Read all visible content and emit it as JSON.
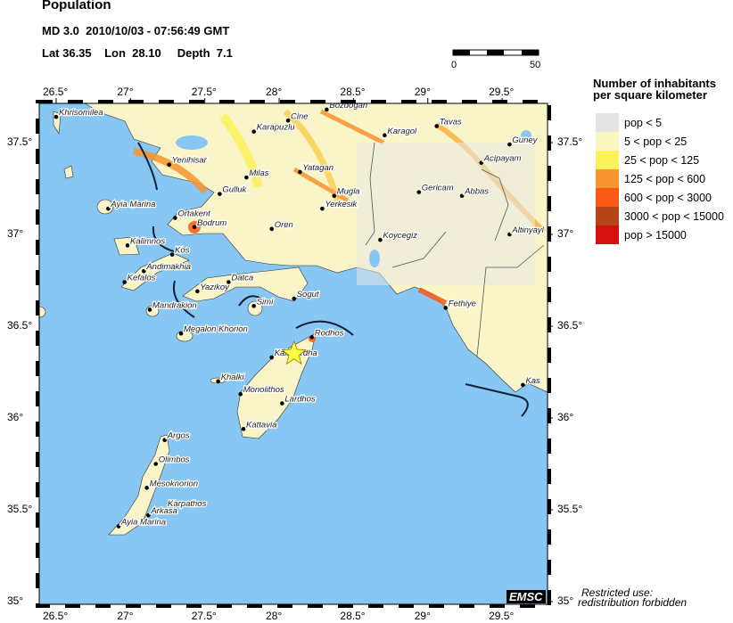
{
  "title": "Population",
  "event": {
    "line1": "MD 3.0  2010/10/03 - 07:56:49 GMT",
    "line2": "Lat 36.35    Lon  28.10     Depth  7.1"
  },
  "epicenter": {
    "lat": 36.35,
    "lon": 28.1,
    "icon": "star-icon",
    "color": "#ffff40"
  },
  "map": {
    "lon_range": [
      26.44,
      29.8
    ],
    "lat_range": [
      34.99,
      37.72
    ],
    "sea_color": "#88c6f4",
    "land_color": "#faf5c8"
  },
  "axes": {
    "lon_ticks": [
      "26.5°",
      "27°",
      "27.5°",
      "28°",
      "28.5°",
      "29°",
      "29.5°"
    ],
    "lat_ticks": [
      "37.5°",
      "37°",
      "36.5°",
      "36°",
      "35.5°",
      "35°"
    ]
  },
  "scalebar": {
    "start": "0",
    "end": "50"
  },
  "legend": {
    "title_line1": "Number of inhabitants",
    "title_line2": "per square kilometer",
    "items": [
      {
        "label": "pop < 5",
        "color": "#e4e4e4"
      },
      {
        "label": "5 < pop < 25",
        "color": "#faf6c2"
      },
      {
        "label": "25 < pop < 125",
        "color": "#fbf25a"
      },
      {
        "label": "125 < pop < 600",
        "color": "#f7952f"
      },
      {
        "label": "600 < pop < 3000",
        "color": "#f95b16"
      },
      {
        "label": "3000 < pop < 15000",
        "color": "#b6441b"
      },
      {
        "label": "pop > 15000",
        "color": "#d61010"
      }
    ]
  },
  "cities": [
    {
      "name": "Khrisomilea",
      "lon": 26.5,
      "lat": 37.64
    },
    {
      "name": "Karapuzlu",
      "lon": 27.83,
      "lat": 37.56
    },
    {
      "name": "Cine",
      "lon": 28.06,
      "lat": 37.62
    },
    {
      "name": "Bozdogan",
      "lon": 28.32,
      "lat": 37.68
    },
    {
      "name": "Karagol",
      "lon": 28.71,
      "lat": 37.54
    },
    {
      "name": "Tavas",
      "lon": 29.06,
      "lat": 37.59
    },
    {
      "name": "Guney",
      "lon": 29.55,
      "lat": 37.49
    },
    {
      "name": "Acipayam",
      "lon": 29.36,
      "lat": 37.39
    },
    {
      "name": "Yenihisar",
      "lon": 27.26,
      "lat": 37.38
    },
    {
      "name": "Milas",
      "lon": 27.78,
      "lat": 37.31
    },
    {
      "name": "Yatagan",
      "lon": 28.14,
      "lat": 37.34
    },
    {
      "name": "Mugla",
      "lon": 28.37,
      "lat": 37.21
    },
    {
      "name": "Yerkesik",
      "lon": 28.29,
      "lat": 37.14
    },
    {
      "name": "Gericam",
      "lon": 28.94,
      "lat": 37.23
    },
    {
      "name": "Abbas",
      "lon": 29.23,
      "lat": 37.21
    },
    {
      "name": "Gulluk",
      "lon": 27.6,
      "lat": 37.22
    },
    {
      "name": "Ayia Marina",
      "lon": 26.85,
      "lat": 37.14
    },
    {
      "name": "Ortakent",
      "lon": 27.3,
      "lat": 37.09
    },
    {
      "name": "Bodrum",
      "lon": 27.43,
      "lat": 37.04
    },
    {
      "name": "Oren",
      "lon": 27.95,
      "lat": 37.03
    },
    {
      "name": "Koycegiz",
      "lon": 28.68,
      "lat": 36.97
    },
    {
      "name": "Altinyayl",
      "lon": 29.55,
      "lat": 37.0
    },
    {
      "name": "Kalimnos",
      "lon": 26.98,
      "lat": 36.94
    },
    {
      "name": "Kos",
      "lon": 27.28,
      "lat": 36.89
    },
    {
      "name": "Andimakhia",
      "lon": 27.09,
      "lat": 36.8
    },
    {
      "name": "Kefalos",
      "lon": 26.96,
      "lat": 36.74
    },
    {
      "name": "Datca",
      "lon": 27.66,
      "lat": 36.74
    },
    {
      "name": "Yazikoy",
      "lon": 27.45,
      "lat": 36.69
    },
    {
      "name": "Sogut",
      "lon": 28.1,
      "lat": 36.65
    },
    {
      "name": "Fethiye",
      "lon": 29.12,
      "lat": 36.6
    },
    {
      "name": "Mandrakion",
      "lon": 27.13,
      "lat": 36.59
    },
    {
      "name": "Simi",
      "lon": 27.83,
      "lat": 36.61
    },
    {
      "name": "Megalon Khorion",
      "lon": 27.34,
      "lat": 36.46
    },
    {
      "name": "Rodhos",
      "lon": 28.22,
      "lat": 36.44
    },
    {
      "name": "Kalavardha",
      "lon": 27.95,
      "lat": 36.33
    },
    {
      "name": "Khalki",
      "lon": 27.59,
      "lat": 36.2
    },
    {
      "name": "Kas",
      "lon": 29.64,
      "lat": 36.18
    },
    {
      "name": "Monolithos",
      "lon": 27.74,
      "lat": 36.13
    },
    {
      "name": "Lardhos",
      "lon": 28.02,
      "lat": 36.08
    },
    {
      "name": "Kattavia",
      "lon": 27.76,
      "lat": 35.94
    },
    {
      "name": "Argos",
      "lon": 27.23,
      "lat": 35.88
    },
    {
      "name": "Olimbos",
      "lon": 27.17,
      "lat": 35.75
    },
    {
      "name": "Mesoknorion",
      "lon": 27.11,
      "lat": 35.62
    },
    {
      "name": "Arkasa",
      "lon": 27.12,
      "lat": 35.47
    },
    {
      "name": "Ayia Marina",
      "lon": 26.92,
      "lat": 35.41
    }
  ],
  "region_labels": [
    {
      "name": "Karpathos",
      "lon": 27.25,
      "lat": 35.52
    }
  ],
  "footer": {
    "logo": "EMSC",
    "restricted_line1": "Restricted use:",
    "restricted_line2": "redistribution forbidden"
  }
}
